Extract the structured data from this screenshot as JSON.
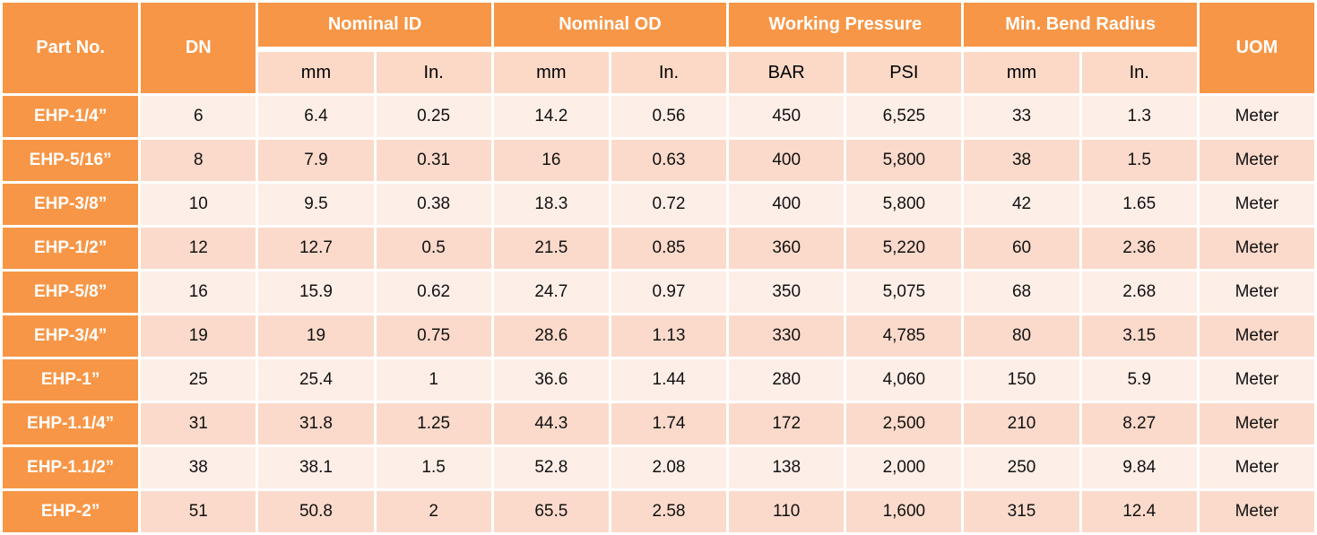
{
  "headers": {
    "part_no": "Part No.",
    "dn": "DN",
    "nominal_id": "Nominal ID",
    "nominal_od": "Nominal OD",
    "working_pressure": "Working Pressure",
    "min_bend_radius": "Min. Bend Radius",
    "uom": "UOM"
  },
  "subheaders": {
    "id_mm": "mm",
    "id_in": "In.",
    "od_mm": "mm",
    "od_in": "In.",
    "wp_bar": "BAR",
    "wp_psi": "PSI",
    "bend_mm": "mm",
    "bend_in": "In."
  },
  "colors": {
    "header_bg": "#f79646",
    "subheader_bg": "#fbd9c6",
    "row_light": "#fdeee7",
    "row_dark": "#fbdacb"
  },
  "rows": [
    {
      "part": "EHP-1/4”",
      "dn": "6",
      "id_mm": "6.4",
      "id_in": "0.25",
      "od_mm": "14.2",
      "od_in": "0.56",
      "bar": "450",
      "psi": "6,525",
      "bend_mm": "33",
      "bend_in": "1.3",
      "uom": "Meter"
    },
    {
      "part": "EHP-5/16”",
      "dn": "8",
      "id_mm": "7.9",
      "id_in": "0.31",
      "od_mm": "16",
      "od_in": "0.63",
      "bar": "400",
      "psi": "5,800",
      "bend_mm": "38",
      "bend_in": "1.5",
      "uom": "Meter"
    },
    {
      "part": "EHP-3/8”",
      "dn": "10",
      "id_mm": "9.5",
      "id_in": "0.38",
      "od_mm": "18.3",
      "od_in": "0.72",
      "bar": "400",
      "psi": "5,800",
      "bend_mm": "42",
      "bend_in": "1.65",
      "uom": "Meter"
    },
    {
      "part": "EHP-1/2”",
      "dn": "12",
      "id_mm": "12.7",
      "id_in": "0.5",
      "od_mm": "21.5",
      "od_in": "0.85",
      "bar": "360",
      "psi": "5,220",
      "bend_mm": "60",
      "bend_in": "2.36",
      "uom": "Meter"
    },
    {
      "part": "EHP-5/8”",
      "dn": "16",
      "id_mm": "15.9",
      "id_in": "0.62",
      "od_mm": "24.7",
      "od_in": "0.97",
      "bar": "350",
      "psi": "5,075",
      "bend_mm": "68",
      "bend_in": "2.68",
      "uom": "Meter"
    },
    {
      "part": "EHP-3/4”",
      "dn": "19",
      "id_mm": "19",
      "id_in": "0.75",
      "od_mm": "28.6",
      "od_in": "1.13",
      "bar": "330",
      "psi": "4,785",
      "bend_mm": "80",
      "bend_in": "3.15",
      "uom": "Meter"
    },
    {
      "part": "EHP-1”",
      "dn": "25",
      "id_mm": "25.4",
      "id_in": "1",
      "od_mm": "36.6",
      "od_in": "1.44",
      "bar": "280",
      "psi": "4,060",
      "bend_mm": "150",
      "bend_in": "5.9",
      "uom": "Meter"
    },
    {
      "part": "EHP-1.1/4”",
      "dn": "31",
      "id_mm": "31.8",
      "id_in": "1.25",
      "od_mm": "44.3",
      "od_in": "1.74",
      "bar": "172",
      "psi": "2,500",
      "bend_mm": "210",
      "bend_in": "8.27",
      "uom": "Meter"
    },
    {
      "part": "EHP-1.1/2”",
      "dn": "38",
      "id_mm": "38.1",
      "id_in": "1.5",
      "od_mm": "52.8",
      "od_in": "2.08",
      "bar": "138",
      "psi": "2,000",
      "bend_mm": "250",
      "bend_in": "9.84",
      "uom": "Meter"
    },
    {
      "part": "EHP-2”",
      "dn": "51",
      "id_mm": "50.8",
      "id_in": "2",
      "od_mm": "65.5",
      "od_in": "2.58",
      "bar": "110",
      "psi": "1,600",
      "bend_mm": "315",
      "bend_in": "12.4",
      "uom": "Meter"
    }
  ]
}
